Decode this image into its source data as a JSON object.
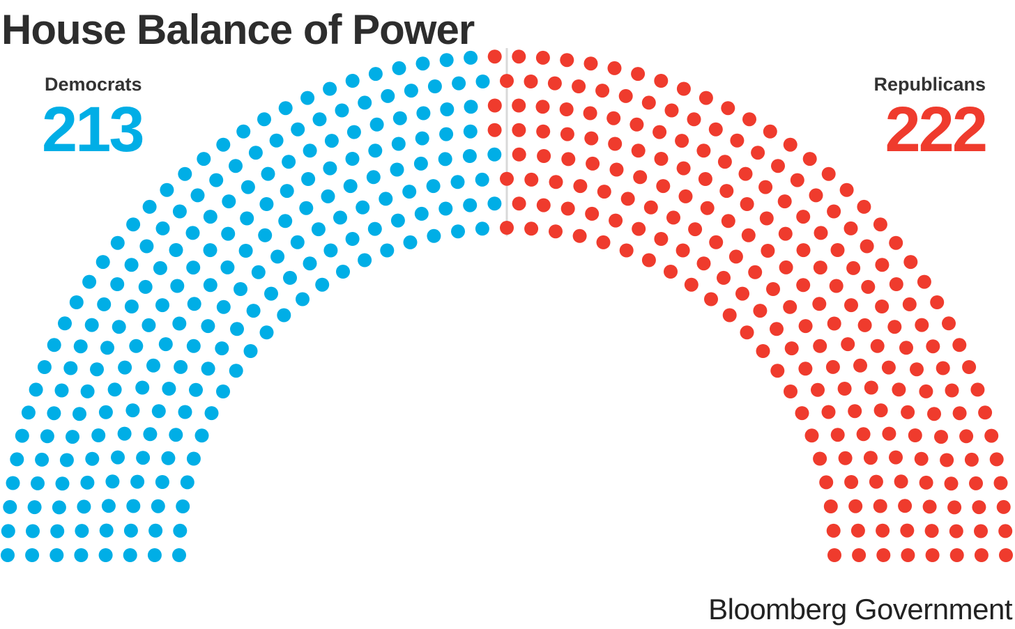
{
  "title": "House Balance of Power",
  "source": "Bloomberg Government",
  "colors": {
    "democrat": "#00aee6",
    "republican": "#ef3b2d",
    "divider": "#d9d9d9"
  },
  "parties": {
    "democrats": {
      "label": "Democrats",
      "count": "213"
    },
    "republicans": {
      "label": "Republicans",
      "count": "222"
    }
  },
  "chart_data": {
    "type": "parliament",
    "title": "House Balance of Power",
    "series": [
      {
        "name": "Democrats",
        "value": 213,
        "color": "#00aee6"
      },
      {
        "name": "Republicans",
        "value": 222,
        "color": "#ef3b2d"
      }
    ],
    "total_seats": 435,
    "divider": true
  }
}
